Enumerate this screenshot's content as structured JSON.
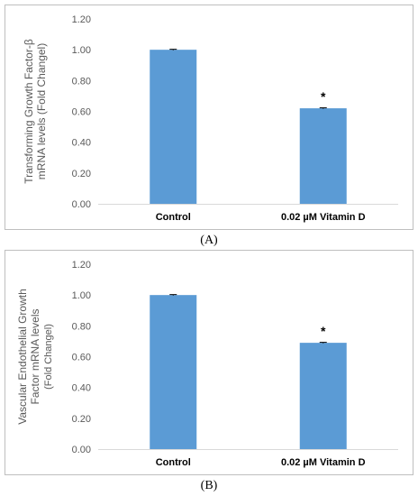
{
  "chart_data": [
    {
      "type": "bar",
      "panel_label": "A",
      "categories": [
        "Control",
        "0.02 µM Vitamin D"
      ],
      "values": [
        1.0,
        0.62
      ],
      "errors": [
        0.003,
        0.003
      ],
      "significance": [
        "",
        "*"
      ],
      "ylabel_lines": [
        "Transforming Growth Factor-β",
        "mRNA levels  (Fold Changel)"
      ],
      "ylim": [
        0,
        1.2
      ],
      "yticks": [
        "0.00",
        "0.20",
        "0.40",
        "0.60",
        "0.80",
        "1.00",
        "1.20"
      ],
      "bar_color": "#5b9bd5",
      "grid": false
    },
    {
      "type": "bar",
      "panel_label": "B",
      "categories": [
        "Control",
        "0.02 µM Vitamin D"
      ],
      "values": [
        1.0,
        0.69
      ],
      "errors": [
        0.003,
        0.003
      ],
      "significance": [
        "",
        "*"
      ],
      "ylabel_lines": [
        "Vascular Endothelial Growth",
        "Factor mRNA levels",
        "(Fold Changel)"
      ],
      "ylim": [
        0,
        1.2
      ],
      "yticks": [
        "0.00",
        "0.20",
        "0.40",
        "0.60",
        "0.80",
        "1.00",
        "1.20"
      ],
      "bar_color": "#5b9bd5",
      "grid": false
    }
  ],
  "captions": {
    "a": "(A)",
    "b": "(B)"
  }
}
